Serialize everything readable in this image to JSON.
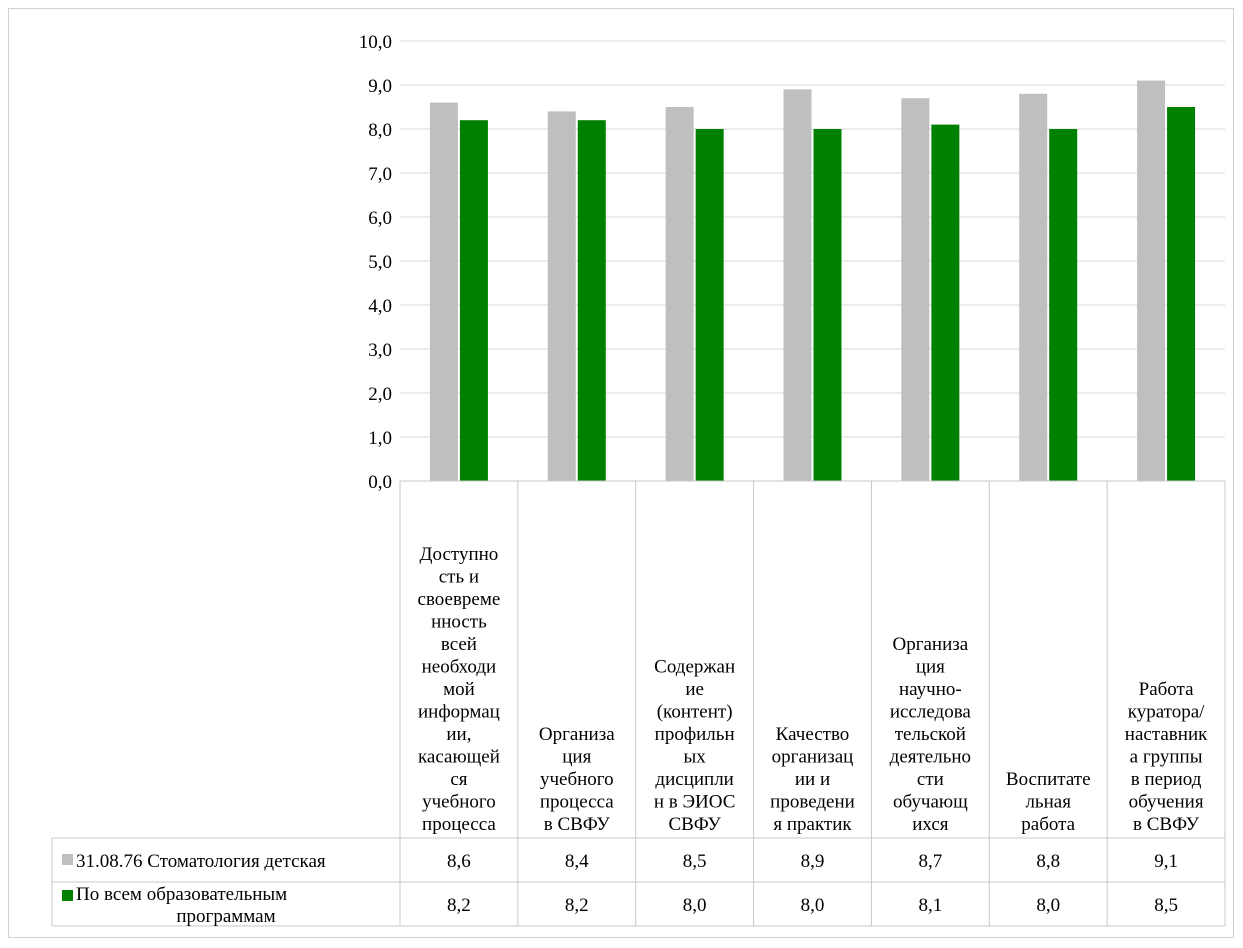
{
  "chart_data": {
    "type": "bar",
    "categories": [
      [
        "Доступно",
        "сть и",
        "своевреме",
        "нность",
        "всей",
        "необходи",
        "мой",
        "информац",
        "ии,",
        "касающей",
        "ся",
        "учебного",
        "процесса"
      ],
      [
        "Организа",
        "ция",
        "учебного",
        "процесса",
        "в СВФУ"
      ],
      [
        "Содержан",
        "ие",
        "(контент)",
        "профильн",
        "ых",
        "дисципли",
        "н в ЭИОС",
        "СВФУ"
      ],
      [
        "Качество",
        "организац",
        "ии и",
        "проведени",
        "я практик"
      ],
      [
        "Организа",
        "ция",
        "научно-",
        "исследова",
        "тельской",
        "деятельно",
        "сти",
        "обучающ",
        "ихся"
      ],
      [
        "Воспитате",
        "льная",
        "работа"
      ],
      [
        "Работа",
        "куратора/",
        "наставник",
        "а группы",
        "в период",
        "обучения",
        "в СВФУ"
      ]
    ],
    "series": [
      {
        "name": "31.08.76 Стоматология детская",
        "name_lines": [
          "31.08.76 Стоматология детская"
        ],
        "values": [
          8.6,
          8.4,
          8.5,
          8.9,
          8.7,
          8.8,
          9.1
        ],
        "labels": [
          "8,6",
          "8,4",
          "8,5",
          "8,9",
          "8,7",
          "8,8",
          "9,1"
        ],
        "color": "#bfbfbf"
      },
      {
        "name": "По всем образовательным программам",
        "name_lines": [
          "По всем образовательным",
          "программам"
        ],
        "values": [
          8.2,
          8.2,
          8.0,
          8.0,
          8.1,
          8.0,
          8.5
        ],
        "labels": [
          "8,2",
          "8,2",
          "8,0",
          "8,0",
          "8,1",
          "8,0",
          "8,5"
        ],
        "color": "#008000"
      }
    ],
    "ylim": [
      0,
      10
    ],
    "yticks": [
      "0,0",
      "1,0",
      "2,0",
      "3,0",
      "4,0",
      "5,0",
      "6,0",
      "7,0",
      "8,0",
      "9,0",
      "10,0"
    ],
    "grid": true,
    "legend": "data-table"
  },
  "colors": {
    "grid": "#d9d9d9",
    "table_border": "#c8c8c8"
  }
}
